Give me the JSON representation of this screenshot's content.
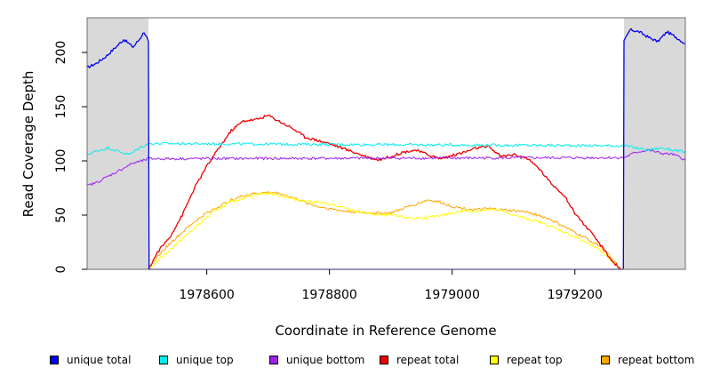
{
  "chart_data": {
    "type": "line",
    "title": "",
    "xlabel": "Coordinate in Reference Genome",
    "ylabel": "Read Coverage Depth",
    "xlim": [
      1978405,
      1979380
    ],
    "ylim": [
      0,
      232
    ],
    "x_ticks": [
      1978600,
      1978800,
      1979000,
      1979200
    ],
    "x_tick_labels": [
      "1978600",
      "1978800",
      "1979000",
      "1979200"
    ],
    "y_ticks": [
      0,
      50,
      100,
      150,
      200
    ],
    "y_tick_labels": [
      "0",
      "50",
      "100",
      "150",
      "200"
    ],
    "grid": false,
    "legend_position": "bottom",
    "shaded_regions": [
      {
        "x0": 1978405,
        "x1": 1978505,
        "color": "#d9d9d9"
      },
      {
        "x0": 1979280,
        "x1": 1979380,
        "color": "#d9d9d9"
      }
    ],
    "series": [
      {
        "name": "unique total",
        "color": "#0000ee",
        "x": [
          1978405,
          1978420,
          1978435,
          1978450,
          1978465,
          1978480,
          1978490,
          1978498,
          1978505,
          1978506,
          1979279,
          1979280,
          1979290,
          1979305,
          1979320,
          1979335,
          1979350,
          1979365,
          1979380
        ],
        "y": [
          186,
          190,
          196,
          204,
          212,
          205,
          212,
          219,
          210,
          0,
          0,
          210,
          221,
          219,
          214,
          210,
          219,
          214,
          208
        ]
      },
      {
        "name": "unique top",
        "color": "#00eeee",
        "x": [
          1978405,
          1978420,
          1978440,
          1978460,
          1978475,
          1978490,
          1978505,
          1979280,
          1979300,
          1979320,
          1979340,
          1979360,
          1979380
        ],
        "y": [
          106,
          109,
          112,
          108,
          106,
          112,
          116,
          114,
          112,
          110,
          112,
          110,
          108
        ]
      },
      {
        "name": "unique bottom",
        "color": "#a020f0",
        "x": [
          1978405,
          1978420,
          1978440,
          1978460,
          1978480,
          1978495,
          1978505,
          1979280,
          1979300,
          1979320,
          1979340,
          1979360,
          1979380
        ],
        "y": [
          77,
          80,
          86,
          92,
          98,
          100,
          102,
          103,
          108,
          110,
          107,
          106,
          101
        ]
      },
      {
        "name": "repeat total",
        "color": "#ee0000",
        "x": [
          1978505,
          1978520,
          1978540,
          1978560,
          1978580,
          1978600,
          1978620,
          1978640,
          1978660,
          1978680,
          1978700,
          1978720,
          1978740,
          1978760,
          1978780,
          1978800,
          1978820,
          1978840,
          1978860,
          1978880,
          1978900,
          1978920,
          1978940,
          1978960,
          1978980,
          1979000,
          1979020,
          1979040,
          1979060,
          1979080,
          1979100,
          1979120,
          1979140,
          1979160,
          1979180,
          1979200,
          1979220,
          1979240,
          1979260,
          1979275
        ],
        "y": [
          0,
          16,
          30,
          50,
          75,
          95,
          112,
          128,
          137,
          138,
          142,
          136,
          130,
          122,
          119,
          116,
          112,
          108,
          104,
          101,
          104,
          108,
          110,
          106,
          102,
          105,
          108,
          112,
          113,
          104,
          106,
          103,
          94,
          80,
          70,
          52,
          38,
          24,
          8,
          0
        ]
      },
      {
        "name": "repeat top",
        "color": "#ffff00",
        "x": [
          1978505,
          1978520,
          1978540,
          1978560,
          1978580,
          1978600,
          1978620,
          1978640,
          1978660,
          1978680,
          1978700,
          1978720,
          1978740,
          1978760,
          1978780,
          1978800,
          1978820,
          1978840,
          1978860,
          1978880,
          1978900,
          1978920,
          1978940,
          1978960,
          1978980,
          1979000,
          1979020,
          1979040,
          1979060,
          1979080,
          1979100,
          1979120,
          1979140,
          1979160,
          1979180,
          1979200,
          1979220,
          1979240,
          1979260,
          1979275
        ],
        "y": [
          0,
          8,
          18,
          28,
          38,
          48,
          56,
          62,
          66,
          69,
          70,
          68,
          65,
          63,
          62,
          60,
          57,
          54,
          52,
          50,
          50,
          48,
          47,
          48,
          49,
          52,
          54,
          54,
          55,
          54,
          50,
          47,
          44,
          40,
          35,
          30,
          24,
          18,
          8,
          0
        ]
      },
      {
        "name": "repeat bottom",
        "color": "#ffa500",
        "x": [
          1978505,
          1978520,
          1978540,
          1978560,
          1978580,
          1978600,
          1978620,
          1978640,
          1978660,
          1978680,
          1978700,
          1978720,
          1978740,
          1978760,
          1978780,
          1978800,
          1978820,
          1978840,
          1978860,
          1978880,
          1978900,
          1978920,
          1978940,
          1978960,
          1978980,
          1979000,
          1979020,
          1979040,
          1979060,
          1979080,
          1979100,
          1979120,
          1979140,
          1979160,
          1979180,
          1979200,
          1979220,
          1979240,
          1979260,
          1979275,
          1979380
        ],
        "y": [
          0,
          12,
          24,
          34,
          44,
          52,
          58,
          64,
          68,
          70,
          71,
          70,
          66,
          62,
          58,
          56,
          54,
          53,
          52,
          52,
          52,
          56,
          60,
          64,
          62,
          58,
          56,
          55,
          56,
          55,
          54,
          53,
          50,
          46,
          40,
          34,
          28,
          22,
          10,
          0,
          0
        ]
      }
    ]
  }
}
